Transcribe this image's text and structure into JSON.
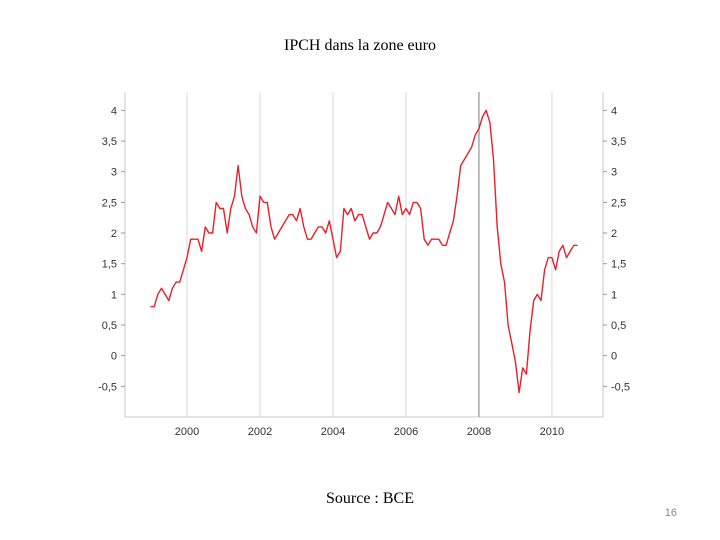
{
  "slide": {
    "title": "IPCH dans la zone euro",
    "source": "Source : BCE",
    "page_number": "16"
  },
  "chart_data": {
    "type": "line",
    "title": "",
    "xlabel": "",
    "ylabel": "",
    "xlim": [
      1998.3,
      2011.4
    ],
    "ylim": [
      -1.0,
      4.3
    ],
    "x_ticks": [
      2000,
      2002,
      2004,
      2006,
      2008,
      2010
    ],
    "x_tick_labels": [
      "2000",
      "2002",
      "2004",
      "2006",
      "2008",
      "2010"
    ],
    "y_ticks": [
      -0.5,
      0,
      0.5,
      1,
      1.5,
      2,
      2.5,
      3,
      3.5,
      4
    ],
    "y_tick_labels_left": [
      "-0,5",
      "0",
      "0,5",
      "1",
      "1,5",
      "2",
      "2,5",
      "3",
      "3,5",
      "4"
    ],
    "y_tick_labels_right": [
      "-0,5",
      "0",
      "0,5",
      "1",
      "1,5",
      "2",
      "2,5",
      "3",
      "3,5",
      "4"
    ],
    "vertical_grid": true,
    "horizontal_grid": false,
    "line_color": "#e8202a",
    "series": [
      {
        "x": [
          1999.0,
          1999.1,
          1999.2,
          1999.3,
          1999.4,
          1999.5,
          1999.6,
          1999.7,
          1999.8,
          1999.9,
          2000.0,
          2000.1,
          2000.2,
          2000.3,
          2000.4,
          2000.5,
          2000.6,
          2000.7,
          2000.8,
          2000.9,
          2001.0,
          2001.1,
          2001.2,
          2001.3,
          2001.4,
          2001.5,
          2001.6,
          2001.7,
          2001.8,
          2001.9,
          2002.0,
          2002.1,
          2002.2,
          2002.3,
          2002.4,
          2002.5,
          2002.6,
          2002.7,
          2002.8,
          2002.9,
          2003.0,
          2003.1,
          2003.2,
          2003.3,
          2003.4,
          2003.5,
          2003.6,
          2003.7,
          2003.8,
          2003.9,
          2004.0,
          2004.1,
          2004.2,
          2004.3,
          2004.4,
          2004.5,
          2004.6,
          2004.7,
          2004.8,
          2004.9,
          2005.0,
          2005.1,
          2005.2,
          2005.3,
          2005.4,
          2005.5,
          2005.6,
          2005.7,
          2005.8,
          2005.9,
          2006.0,
          2006.1,
          2006.2,
          2006.3,
          2006.4,
          2006.5,
          2006.6,
          2006.7,
          2006.8,
          2006.9,
          2007.0,
          2007.1,
          2007.2,
          2007.3,
          2007.4,
          2007.5,
          2007.6,
          2007.7,
          2007.8,
          2007.9,
          2008.0,
          2008.1,
          2008.2,
          2008.3,
          2008.4,
          2008.5,
          2008.6,
          2008.7,
          2008.8,
          2008.9,
          2009.0,
          2009.1,
          2009.2,
          2009.3,
          2009.4,
          2009.5,
          2009.6,
          2009.7,
          2009.8,
          2009.9,
          2010.0,
          2010.1,
          2010.2,
          2010.3,
          2010.4,
          2010.5,
          2010.6,
          2010.7
        ],
        "y": [
          0.8,
          0.8,
          1.0,
          1.1,
          1.0,
          0.9,
          1.1,
          1.2,
          1.2,
          1.4,
          1.6,
          1.9,
          1.9,
          1.9,
          1.7,
          2.1,
          2.0,
          2.0,
          2.5,
          2.4,
          2.4,
          2.0,
          2.4,
          2.6,
          3.1,
          2.6,
          2.4,
          2.3,
          2.1,
          2.0,
          2.6,
          2.5,
          2.5,
          2.1,
          1.9,
          2.0,
          2.1,
          2.2,
          2.3,
          2.3,
          2.2,
          2.4,
          2.1,
          1.9,
          1.9,
          2.0,
          2.1,
          2.1,
          2.0,
          2.2,
          1.9,
          1.6,
          1.7,
          2.4,
          2.3,
          2.4,
          2.2,
          2.3,
          2.3,
          2.1,
          1.9,
          2.0,
          2.0,
          2.1,
          2.3,
          2.5,
          2.4,
          2.3,
          2.6,
          2.3,
          2.4,
          2.3,
          2.5,
          2.5,
          2.4,
          1.9,
          1.8,
          1.9,
          1.9,
          1.9,
          1.8,
          1.8,
          2.0,
          2.2,
          2.6,
          3.1,
          3.2,
          3.3,
          3.4,
          3.6,
          3.7,
          3.9,
          4.0,
          3.8,
          3.2,
          2.1,
          1.5,
          1.2,
          0.5,
          0.2,
          -0.1,
          -0.6,
          -0.2,
          -0.3,
          0.4,
          0.9,
          1.0,
          0.9,
          1.4,
          1.6,
          1.6,
          1.4,
          1.7,
          1.8,
          1.6,
          1.7,
          1.8,
          1.8
        ]
      }
    ]
  }
}
